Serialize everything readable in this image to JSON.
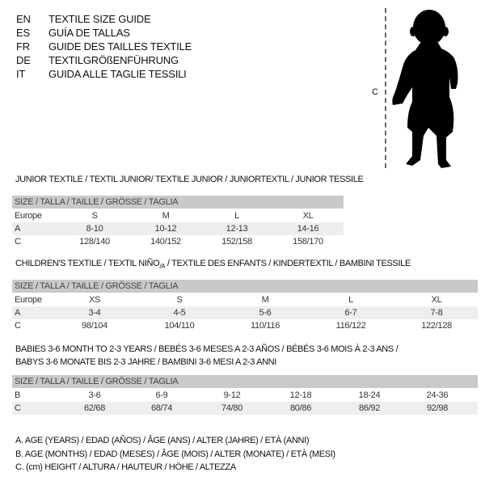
{
  "languages": [
    {
      "code": "EN",
      "label": "TEXTILE SIZE GUIDE"
    },
    {
      "code": "ES",
      "label": "GUÍA DE TALLAS"
    },
    {
      "code": "FR",
      "label": "GUIDE DES TAILLES TEXTILE"
    },
    {
      "code": "DE",
      "label": "TEXTILGRÖßENFÜHRUNG"
    },
    {
      "code": "IT",
      "label": "GUIDA ALLE TAGLIE TESSILI"
    }
  ],
  "figure": {
    "measure_label": "C",
    "icon": "child-silhouette"
  },
  "size_header": "SIZE / TALLA / TAILLE / GRÖSSE / TAGLIA",
  "junior": {
    "title": "JUNIOR TEXTILE / TEXTIL JUNIOR/ TEXTILE JUNIOR / JUNIORTEXTIL / JUNIOR TESSILE",
    "rows": [
      {
        "label": "Europe",
        "values": [
          "S",
          "M",
          "L",
          "XL"
        ]
      },
      {
        "label": "A",
        "values": [
          "8-10",
          "10-12",
          "12-13",
          "14-16"
        ]
      },
      {
        "label": "C",
        "values": [
          "128/140",
          "140/152",
          "152/158",
          "158/170"
        ]
      }
    ]
  },
  "children": {
    "title": "CHILDREN'S TEXTILE / TEXTIL NIÑO",
    "title_sub": "/A",
    "title_rest": " / TEXTILE DES ENFANTS / KINDERTEXTIL / BAMBINI TESSILE",
    "rows": [
      {
        "label": "Europe",
        "values": [
          "XS",
          "S",
          "M",
          "L",
          "XL"
        ]
      },
      {
        "label": "A",
        "values": [
          "3-4",
          "4-5",
          "5-6",
          "6-7",
          "7-8"
        ]
      },
      {
        "label": "C",
        "values": [
          "98/104",
          "104/110",
          "110/116",
          "116/122",
          "122/128"
        ]
      }
    ]
  },
  "babies": {
    "title_line1": "BABIES 3-6 MONTH TO 2-3 YEARS / BEBÉS 3-6 MESES A 2-3 AÑOS / BÉBÉS 3-6 MOIS À 2-3 ANS /",
    "title_line2": "BABYS 3-6 MONATE BIS 2-3 JAHRE / BAMBINI 3-6 MESI A 2-3 ANNI",
    "rows": [
      {
        "label": "B",
        "values": [
          "3-6",
          "6-9",
          "9-12",
          "12-18",
          "18-24",
          "24-36"
        ]
      },
      {
        "label": "C",
        "values": [
          "62/68",
          "68/74",
          "74/80",
          "80/86",
          "86/92",
          "92/98"
        ]
      }
    ]
  },
  "legend": [
    "A. AGE (YEARS) / EDAD (AÑOS) / ÂGE (ANS) / ALTER (JAHRE) / ETÀ (ANNI)",
    "B. AGE (MONTHS) / EDAD (MESES) / ÂGE (MOIS) / ALTER (MONATE) / ETÀ (MESI)",
    "C. (cm) HEIGHT / ALTURA / HAUTEUR / HÖHE / ALTEZZA"
  ]
}
